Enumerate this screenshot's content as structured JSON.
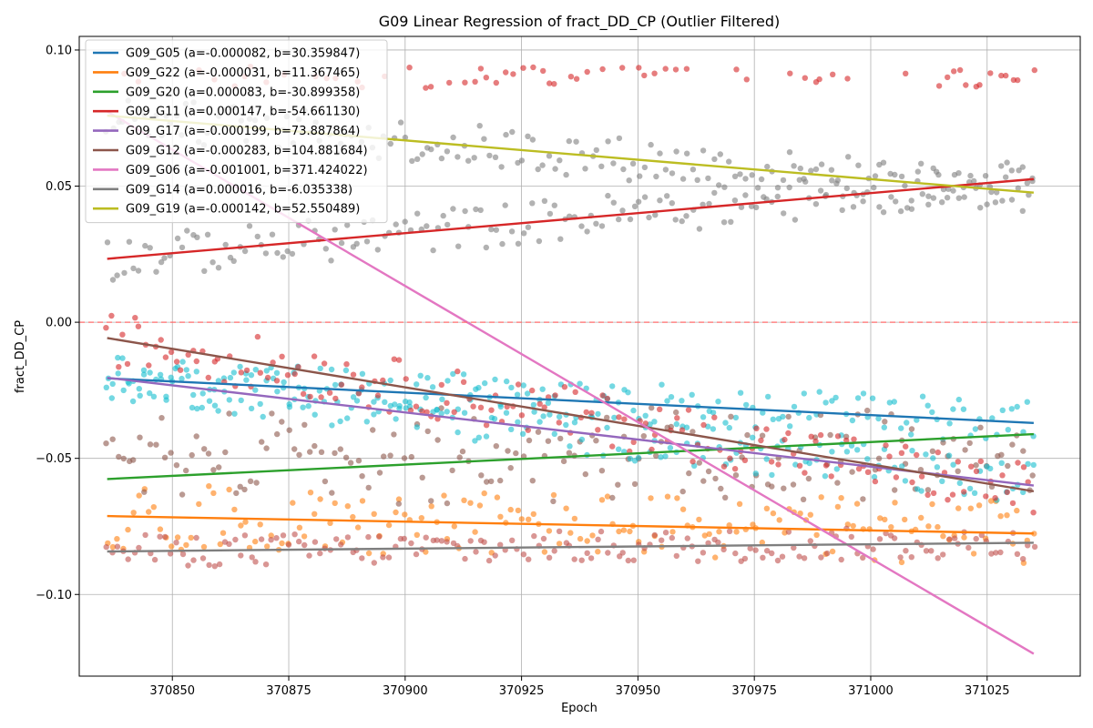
{
  "chart_data": {
    "type": "scatter",
    "title": "G09 Linear Regression of fract_DD_CP (Outlier Filtered)",
    "xlabel": "Epoch",
    "ylabel": "fract_DD_CP",
    "xlim": [
      370830,
      371045
    ],
    "ylim": [
      -0.13,
      0.105
    ],
    "x_ticks": [
      370850,
      370875,
      370900,
      370925,
      370950,
      370975,
      371000,
      371025
    ],
    "y_ticks": [
      0.1,
      0.05,
      0.0,
      -0.05,
      -0.1
    ],
    "y_tick_labels": [
      "0.10",
      "0.05",
      "0.00",
      "−0.05",
      "−0.10"
    ],
    "grid": true,
    "legend_position": "top-left",
    "reference_line": {
      "y": 0.0,
      "style": "dashed",
      "color": "#ff6b6b"
    },
    "x_range": [
      370836,
      371035
    ],
    "series": [
      {
        "name": "G09_G05 (a=-0.000082, b=30.359847)",
        "color": "#1f77b4",
        "line": [
          [
            370836,
            -0.0206
          ],
          [
            371035,
            -0.037
          ]
        ],
        "scatter_color": "#17becf",
        "scatter_center": -0.0285,
        "spread": 0.008
      },
      {
        "name": "G09_G22 (a=-0.000031, b=11.367465)",
        "color": "#ff7f0e",
        "line": [
          [
            370836,
            -0.0712
          ],
          [
            371035,
            -0.0776
          ]
        ],
        "scatter_color": "#ff7f0e",
        "scatter_center": -0.025,
        "spread": 0.012
      },
      {
        "name": "G09_G20 (a=0.000083, b=-30.899358)",
        "color": "#2ca02c",
        "line": [
          [
            370836,
            -0.0576
          ],
          [
            371035,
            -0.0411
          ]
        ],
        "scatter_color": "#8c564b",
        "scatter_center": -0.05,
        "spread": 0.01
      },
      {
        "name": "G09_G11 (a=0.000147, b=-54.661130)",
        "color": "#d62728",
        "line": [
          [
            370836,
            0.0233
          ],
          [
            371035,
            0.0526
          ]
        ],
        "scatter_color": "#7f7f7f",
        "scatter_center": 0.038,
        "spread": 0.008
      },
      {
        "name": "G09_G17 (a=-0.000199, b=73.887864)",
        "color": "#9467bd",
        "line": [
          [
            370836,
            -0.0204
          ],
          [
            371035,
            -0.06
          ]
        ],
        "scatter_color": "#17becf",
        "scatter_center": -0.042,
        "spread": 0.008
      },
      {
        "name": "G09_G12 (a=-0.000283, b=104.881684)",
        "color": "#8c564b",
        "line": [
          [
            370836,
            -0.0058
          ],
          [
            371035,
            -0.0621
          ]
        ],
        "scatter_color": "#d62728",
        "scatter_center": -0.08,
        "spread": 0.01
      },
      {
        "name": "G09_G06 (a=-0.001001, b=371.424022)",
        "color": "#e377c2",
        "line": [
          [
            370836,
            0.0774
          ],
          [
            371035,
            -0.1218
          ]
        ],
        "scatter_color": "#d62728",
        "scatter_center": 0.09,
        "spread": 0.004
      },
      {
        "name": "G09_G14 (a=0.000016, b=-6.035338)",
        "color": "#7f7f7f",
        "line": [
          [
            370836,
            -0.0842
          ],
          [
            371035,
            -0.081
          ]
        ],
        "scatter_color": "#c0504d",
        "scatter_center": -0.088,
        "spread": 0.006
      },
      {
        "name": "G09_G19 (a=-0.000142, b=52.550489)",
        "color": "#bcbd22",
        "line": [
          [
            370836,
            0.0759
          ],
          [
            371035,
            0.0476
          ]
        ],
        "scatter_color": "#7f7f7f",
        "scatter_center": 0.06,
        "spread": 0.008
      }
    ]
  }
}
